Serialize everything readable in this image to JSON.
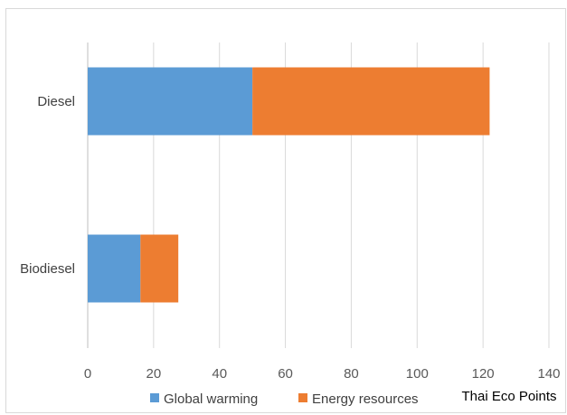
{
  "chart_data": {
    "type": "bar",
    "orientation": "horizontal",
    "stacked": true,
    "categories": [
      "Diesel",
      "Biodiesel"
    ],
    "series": [
      {
        "name": "Global warming",
        "values": [
          50,
          16
        ],
        "color": "#5b9bd5"
      },
      {
        "name": "Energy resources",
        "values": [
          72,
          11.5
        ],
        "color": "#ed7d31"
      }
    ],
    "xlabel": "Thai Eco Points",
    "xlim": [
      0,
      140
    ],
    "xticks": [
      0,
      20,
      40,
      60,
      80,
      100,
      120,
      140
    ],
    "grid": true,
    "legend_position": "bottom"
  }
}
